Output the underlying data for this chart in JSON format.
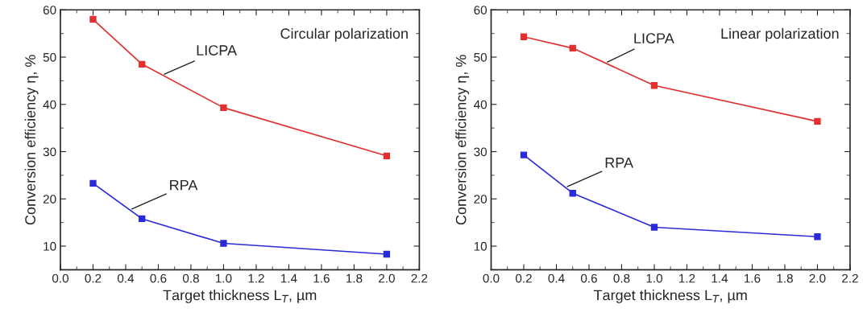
{
  "chart_data": [
    {
      "type": "line",
      "xlabel": "Target thickness L$_{T}$, µm",
      "ylabel": "Conversion efficiency η, %",
      "x": [
        0.2,
        0.5,
        1.0,
        2.0
      ],
      "series": [
        {
          "name": "LICPA",
          "color": "#e03030",
          "values": [
            58,
            48.5,
            39.3,
            29.1
          ]
        },
        {
          "name": "RPA",
          "color": "#2a2ad8",
          "values": [
            23.3,
            15.8,
            10.6,
            8.3
          ]
        }
      ],
      "xlim": [
        0.0,
        2.2
      ],
      "xticks": [
        {
          "value": 0.0,
          "label": "0.0"
        },
        0.2,
        0.4,
        0.6,
        0.8,
        {
          "value": 1.0,
          "label": "1.0"
        },
        1.2,
        1.4,
        1.6,
        1.8,
        {
          "value": 2.0,
          "label": "2.0"
        },
        2.2
      ],
      "ylim": [
        5,
        60
      ],
      "yticks": [
        10,
        20,
        30,
        40,
        50,
        60
      ],
      "annotations": [
        "Circular polarization"
      ],
      "marker": "square",
      "line_style": "solid",
      "grid": false,
      "legend": false
    },
    {
      "type": "line",
      "xlabel": "Target thickness L$_{T}$, µm",
      "ylabel": "Conversion efficiency η, %",
      "x": [
        0.2,
        0.5,
        1.0,
        2.0
      ],
      "series": [
        {
          "name": "LICPA",
          "color": "#e03030",
          "values": [
            54.3,
            51.9,
            44,
            36.4
          ]
        },
        {
          "name": "RPA",
          "color": "#2a2ad8",
          "values": [
            29.3,
            21.2,
            14,
            12
          ]
        }
      ],
      "xlim": [
        0.0,
        2.2
      ],
      "xticks": [
        {
          "value": 0.0,
          "label": "0.0"
        },
        0.2,
        0.4,
        0.6,
        0.8,
        {
          "value": 1.0,
          "label": "1.0"
        },
        1.2,
        1.4,
        1.6,
        1.8,
        {
          "value": 2.0,
          "label": "2.0"
        },
        2.2
      ],
      "ylim": [
        5,
        60
      ],
      "yticks": [
        10,
        20,
        30,
        40,
        50,
        60
      ],
      "annotations": [
        "Linear polarization"
      ],
      "marker": "square",
      "line_style": "solid",
      "grid": false,
      "legend": false
    }
  ]
}
